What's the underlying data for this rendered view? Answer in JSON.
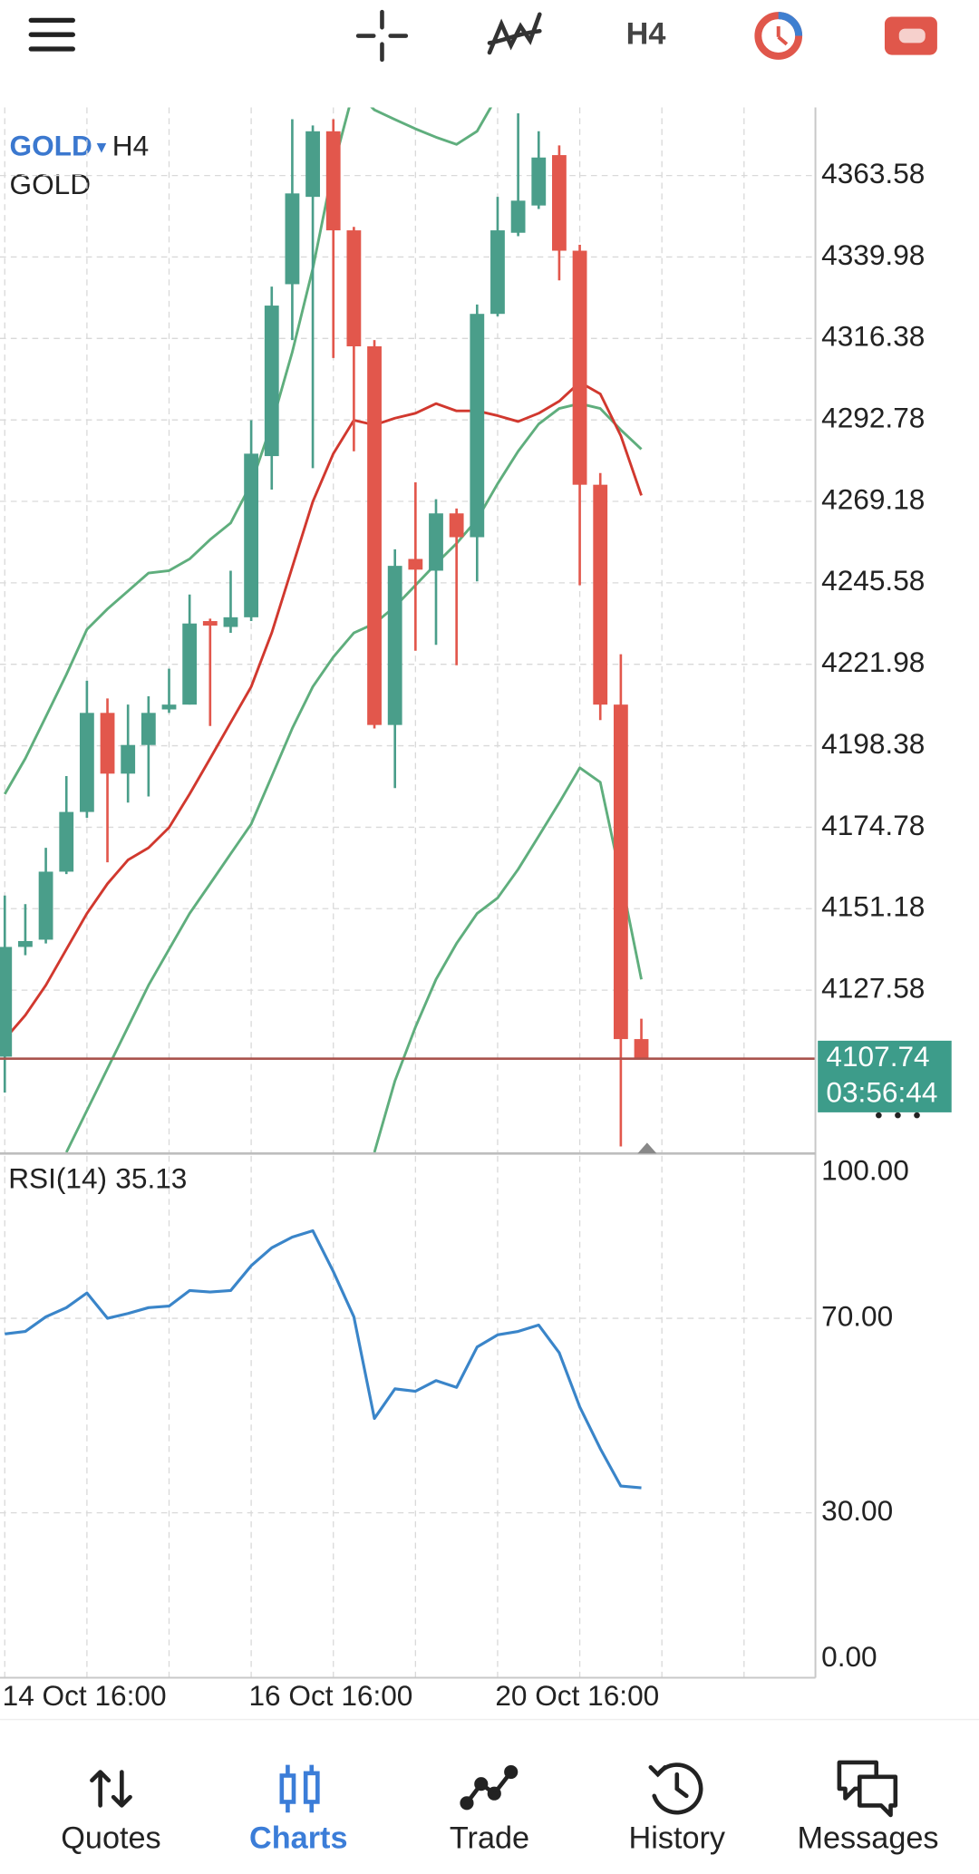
{
  "toolbar": {
    "timeframe": "H4"
  },
  "chart_data": [
    {
      "type": "candlestick",
      "symbol": "GOLD",
      "timeframe": "H4",
      "description": "GOLD",
      "categories": [
        "14 Oct 16:00",
        null,
        null,
        null,
        null,
        null,
        null,
        null,
        null,
        null,
        null,
        null,
        "16 Oct 16:00",
        null,
        null,
        null,
        null,
        null,
        null,
        null,
        null,
        null,
        null,
        null,
        "20 Oct 16:00",
        null,
        null,
        null,
        null,
        null,
        null,
        null
      ],
      "open": [
        4108.3,
        4140.1,
        4142.2,
        4161.9,
        4179.2,
        4207.9,
        4190.3,
        4198.6,
        4208.9,
        4210.3,
        4234.5,
        4232.8,
        4235.6,
        4282.3,
        4332.1,
        4357.4,
        4376.4,
        4347.7,
        4314.1,
        4204.4,
        4252.5,
        4249.1,
        4265.7,
        4258.8,
        4323.5,
        4347.0,
        4354.9,
        4369.5,
        4341.8,
        4274.0,
        4210.3,
        4113.4
      ],
      "high": [
        4155.0,
        4152.5,
        4168.8,
        4189.6,
        4217.2,
        4212.1,
        4210.3,
        4212.7,
        4220.7,
        4242.2,
        4235.2,
        4249.1,
        4292.7,
        4331.4,
        4379.9,
        4378.1,
        4379.9,
        4348.7,
        4315.9,
        4255.3,
        4274.7,
        4269.8,
        4267.1,
        4326.2,
        4357.4,
        4381.6,
        4376.4,
        4372.3,
        4343.5,
        4277.4,
        4224.9,
        4119.3
      ],
      "low": [
        4097.9,
        4137.7,
        4141.1,
        4161.2,
        4177.5,
        4164.6,
        4181.9,
        4183.7,
        4207.9,
        4210.3,
        4204.1,
        4231.1,
        4234.5,
        4272.6,
        4315.9,
        4278.8,
        4310.7,
        4283.7,
        4203.4,
        4186.1,
        4225.9,
        4227.6,
        4221.7,
        4246.0,
        4322.8,
        4346.0,
        4353.9,
        4333.2,
        4244.9,
        4205.8,
        4082.3,
        4107.74
      ],
      "close": [
        4140.1,
        4141.8,
        4161.9,
        4179.2,
        4207.9,
        4190.3,
        4198.6,
        4207.9,
        4210.3,
        4233.8,
        4233.2,
        4235.6,
        4283.0,
        4325.9,
        4358.4,
        4376.4,
        4347.7,
        4314.1,
        4204.4,
        4250.5,
        4249.4,
        4265.7,
        4258.8,
        4323.5,
        4347.7,
        4356.3,
        4368.8,
        4341.8,
        4274.0,
        4210.3,
        4113.4,
        4107.74
      ],
      "up_color": "#4a9e8a",
      "down_color": "#e2574c",
      "series": [
        {
          "color": "#5fae7d",
          "values": [
            4184.4,
            4194.7,
            4206.8,
            4219.0,
            4232.1,
            4238.0,
            4243.2,
            4248.4,
            4249.1,
            4252.5,
            4258.1,
            4262.9,
            4274.3,
            4291.6,
            4312.4,
            4336.6,
            4366.0,
            4388.5,
            4382.6,
            4379.8,
            4377.1,
            4374.7,
            4372.6,
            4376.4,
            4386.8,
            null,
            null,
            null,
            null,
            null,
            null,
            null
          ]
        },
        {
          "color": "#5fae7d",
          "values": [
            null,
            null,
            null,
            4080.6,
            4092.7,
            4104.8,
            4116.9,
            4129.0,
            4139.4,
            4149.8,
            4158.4,
            4167.1,
            4175.7,
            4189.5,
            4203.4,
            4215.5,
            4224.1,
            4231.1,
            4233.8,
            4238.7,
            4244.9,
            4251.1,
            4257.0,
            4263.9,
            4274.3,
            4283.7,
            4291.6,
            4296.1,
            4297.5,
            4296.1,
            4289.9,
            4284.3
          ]
        },
        {
          "color": "#5fae7d",
          "values": [
            null,
            null,
            null,
            null,
            null,
            null,
            null,
            null,
            null,
            null,
            null,
            null,
            null,
            null,
            null,
            null,
            null,
            null,
            4080.6,
            4101.3,
            4116.9,
            4130.7,
            4141.1,
            4149.8,
            4154.3,
            4162.6,
            4172.2,
            4181.9,
            4192.0,
            4187.8,
            4160.1,
            4130.7
          ]
        },
        {
          "color": "#d1382e",
          "values": [
            4113.4,
            4120.3,
            4129.0,
            4139.4,
            4149.8,
            4158.4,
            4165.3,
            4168.8,
            4174.7,
            4184.4,
            4194.7,
            4205.1,
            4215.5,
            4231.1,
            4250.1,
            4269.1,
            4283.0,
            4292.7,
            4291.3,
            4293.3,
            4294.7,
            4297.5,
            4295.4,
            4295.4,
            4294.0,
            4292.3,
            4294.7,
            4298.2,
            4303.7,
            4300.3,
            4288.2,
            4270.9
          ]
        }
      ],
      "ylim": [
        4080.6,
        4383.3
      ],
      "yticks": [
        4363.58,
        4339.98,
        4316.38,
        4292.78,
        4269.18,
        4245.58,
        4221.98,
        4198.38,
        4174.78,
        4151.18,
        4127.58
      ],
      "grid": true,
      "last_price": 4107.74,
      "last_price_color": "#a9534d",
      "last_price_box_color": "#3d9c8a",
      "countdown": "03:56:44"
    },
    {
      "type": "line",
      "title": "RSI(14)",
      "current_value": 35.13,
      "color": "#3a85c9",
      "values": [
        66.8,
        67.3,
        70.3,
        72.2,
        75.2,
        70.0,
        71.0,
        72.2,
        72.5,
        75.7,
        75.4,
        75.7,
        80.8,
        84.5,
        86.7,
        88.0,
        79.6,
        70.3,
        49.4,
        55.5,
        55.0,
        57.2,
        55.8,
        64.1,
        66.6,
        67.3,
        68.6,
        62.9,
        51.8,
        43.2,
        35.5,
        35.13
      ],
      "ylim": [
        -3.9,
        103.4
      ],
      "yticks": [
        {
          "value": 100,
          "label": "100.00"
        },
        {
          "value": 70,
          "label": "70.00"
        },
        {
          "value": 30,
          "label": "30.00"
        },
        {
          "value": 0,
          "label": "0.00"
        }
      ],
      "grid": true
    }
  ],
  "nav": {
    "items": [
      "Quotes",
      "Charts",
      "Trade",
      "History",
      "Messages"
    ],
    "active": 1
  }
}
